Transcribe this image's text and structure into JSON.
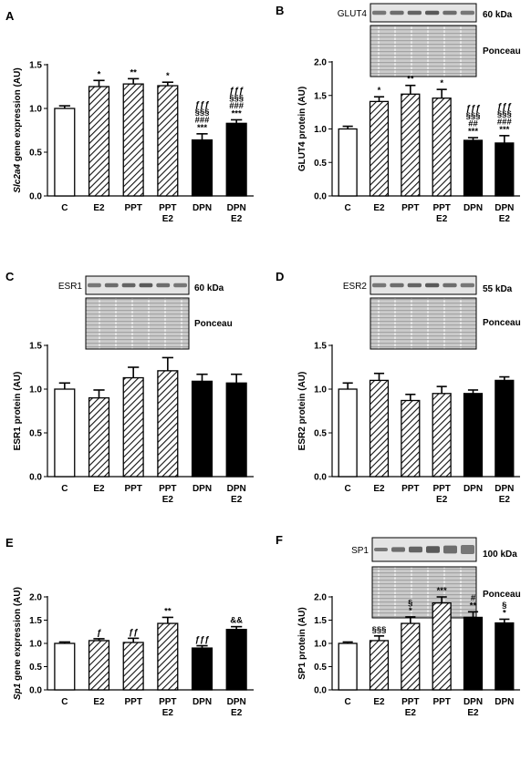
{
  "panels": [
    {
      "letter": "A",
      "ylabel_italic": "Slc2a4",
      "ylabel_rest": " gene expression (AU)",
      "blot": null,
      "chart_data": {
        "type": "bar",
        "categories": [
          [
            "C"
          ],
          [
            "E2"
          ],
          [
            "PPT"
          ],
          [
            "PPT",
            "E2"
          ],
          [
            "DPN"
          ],
          [
            "DPN",
            "E2"
          ]
        ],
        "values": [
          1.0,
          1.25,
          1.28,
          1.26,
          0.64,
          0.83
        ],
        "errors": [
          0.03,
          0.07,
          0.06,
          0.04,
          0.07,
          0.04
        ],
        "fills": [
          "white",
          "hatch",
          "hatch",
          "hatch",
          "black",
          "black"
        ],
        "annotations": [
          [],
          [
            "*"
          ],
          [
            "**"
          ],
          [
            "*"
          ],
          [
            "ƒƒƒ",
            "§§§",
            "###",
            "***"
          ],
          [
            "ƒƒƒ",
            "§§§",
            "###",
            "***"
          ]
        ],
        "ylim": [
          0,
          1.5
        ],
        "yticks": [
          "0.0",
          "0.5",
          "1.0",
          "1.5"
        ]
      }
    },
    {
      "letter": "B",
      "ylabel_italic": "",
      "ylabel_rest": "GLUT4 protein (AU)",
      "blot": {
        "protein": "GLUT4",
        "kda": "60 kDa",
        "loading": "Ponceau"
      },
      "chart_data": {
        "type": "bar",
        "categories": [
          [
            "C"
          ],
          [
            "E2"
          ],
          [
            "PPT"
          ],
          [
            "PPT",
            "E2"
          ],
          [
            "DPN"
          ],
          [
            "DPN",
            "E2"
          ]
        ],
        "values": [
          1.0,
          1.41,
          1.52,
          1.46,
          0.83,
          0.79
        ],
        "errors": [
          0.04,
          0.07,
          0.13,
          0.13,
          0.04,
          0.11
        ],
        "fills": [
          "white",
          "hatch",
          "hatch",
          "hatch",
          "black",
          "black"
        ],
        "annotations": [
          [],
          [
            "*"
          ],
          [
            "**"
          ],
          [
            "*"
          ],
          [
            "ƒƒƒ",
            "§§§",
            "##",
            "***"
          ],
          [
            "ƒƒƒ",
            "§§§",
            "###",
            "***"
          ]
        ],
        "ylim": [
          0,
          2.0
        ],
        "yticks": [
          "0.0",
          "0.5",
          "1.0",
          "1.5",
          "2.0"
        ]
      }
    },
    {
      "letter": "C",
      "ylabel_italic": "",
      "ylabel_rest": "ESR1 protein (AU)",
      "blot": {
        "protein": "ESR1",
        "kda": "60 kDa",
        "loading": "Ponceau"
      },
      "chart_data": {
        "type": "bar",
        "categories": [
          [
            "C"
          ],
          [
            "E2"
          ],
          [
            "PPT"
          ],
          [
            "PPT",
            "E2"
          ],
          [
            "DPN"
          ],
          [
            "DPN",
            "E2"
          ]
        ],
        "values": [
          1.0,
          0.9,
          1.13,
          1.21,
          1.09,
          1.07
        ],
        "errors": [
          0.07,
          0.09,
          0.12,
          0.15,
          0.08,
          0.1
        ],
        "fills": [
          "white",
          "hatch",
          "hatch",
          "hatch",
          "black",
          "black"
        ],
        "annotations": [
          [],
          [],
          [],
          [],
          [],
          []
        ],
        "ylim": [
          0,
          1.5
        ],
        "yticks": [
          "0.0",
          "0.5",
          "1.0",
          "1.5"
        ]
      }
    },
    {
      "letter": "D",
      "ylabel_italic": "",
      "ylabel_rest": "ESR2 protein (AU)",
      "blot": {
        "protein": "ESR2",
        "kda": "55 kDa",
        "loading": "Ponceau"
      },
      "chart_data": {
        "type": "bar",
        "categories": [
          [
            "C"
          ],
          [
            "E2"
          ],
          [
            "PPT"
          ],
          [
            "PPT",
            "E2"
          ],
          [
            "DPN"
          ],
          [
            "DPN",
            "E2"
          ]
        ],
        "values": [
          1.0,
          1.1,
          0.87,
          0.95,
          0.95,
          1.1
        ],
        "errors": [
          0.07,
          0.08,
          0.07,
          0.08,
          0.04,
          0.04
        ],
        "fills": [
          "white",
          "hatch",
          "hatch",
          "hatch",
          "black",
          "black"
        ],
        "annotations": [
          [],
          [],
          [],
          [],
          [],
          []
        ],
        "ylim": [
          0,
          1.5
        ],
        "yticks": [
          "0.0",
          "0.5",
          "1.0",
          "1.5"
        ]
      }
    },
    {
      "letter": "E",
      "ylabel_italic": "Sp1",
      "ylabel_rest": " gene expression (AU)",
      "blot": null,
      "chart_data": {
        "type": "bar",
        "categories": [
          [
            "C"
          ],
          [
            "E2"
          ],
          [
            "PPT"
          ],
          [
            "PPT",
            "E2"
          ],
          [
            "DPN"
          ],
          [
            "DPN",
            "E2"
          ]
        ],
        "values": [
          1.0,
          1.06,
          1.02,
          1.43,
          0.9,
          1.3
        ],
        "errors": [
          0.03,
          0.04,
          0.09,
          0.13,
          0.05,
          0.06
        ],
        "fills": [
          "white",
          "hatch",
          "hatch",
          "hatch",
          "black",
          "black"
        ],
        "annotations": [
          [],
          [
            "ƒ"
          ],
          [
            "ƒƒ"
          ],
          [
            "**"
          ],
          [
            "ƒƒƒ"
          ],
          [
            "&&"
          ]
        ],
        "ylim": [
          0,
          2.0
        ],
        "yticks": [
          "0.0",
          "0.5",
          "1.0",
          "1.5",
          "2.0"
        ]
      }
    },
    {
      "letter": "F",
      "ylabel_italic": "",
      "ylabel_rest": "SP1 protein (AU)",
      "blot": {
        "protein": "SP1",
        "kda": "100 kDa",
        "loading": "Ponceau"
      },
      "chart_data": {
        "type": "bar",
        "categories": [
          [
            "C"
          ],
          [
            "E2"
          ],
          [
            "PPT",
            "E2"
          ],
          [
            "PPT"
          ],
          [
            "DPN",
            "E2"
          ],
          [
            "DPN"
          ]
        ],
        "values": [
          1.0,
          1.06,
          1.43,
          1.87,
          1.56,
          1.44
        ],
        "errors": [
          0.03,
          0.1,
          0.14,
          0.13,
          0.12,
          0.08
        ],
        "fills": [
          "white",
          "hatch",
          "hatch",
          "hatch",
          "black",
          "black"
        ],
        "annotations": [
          [],
          [
            "§§§"
          ],
          [
            "§",
            "*"
          ],
          [
            "***"
          ],
          [
            "#",
            "**"
          ],
          [
            "§",
            "*"
          ]
        ],
        "ylim": [
          0,
          2.0
        ],
        "yticks": [
          "0.0",
          "0.5",
          "1.0",
          "1.5",
          "2.0"
        ]
      }
    }
  ]
}
